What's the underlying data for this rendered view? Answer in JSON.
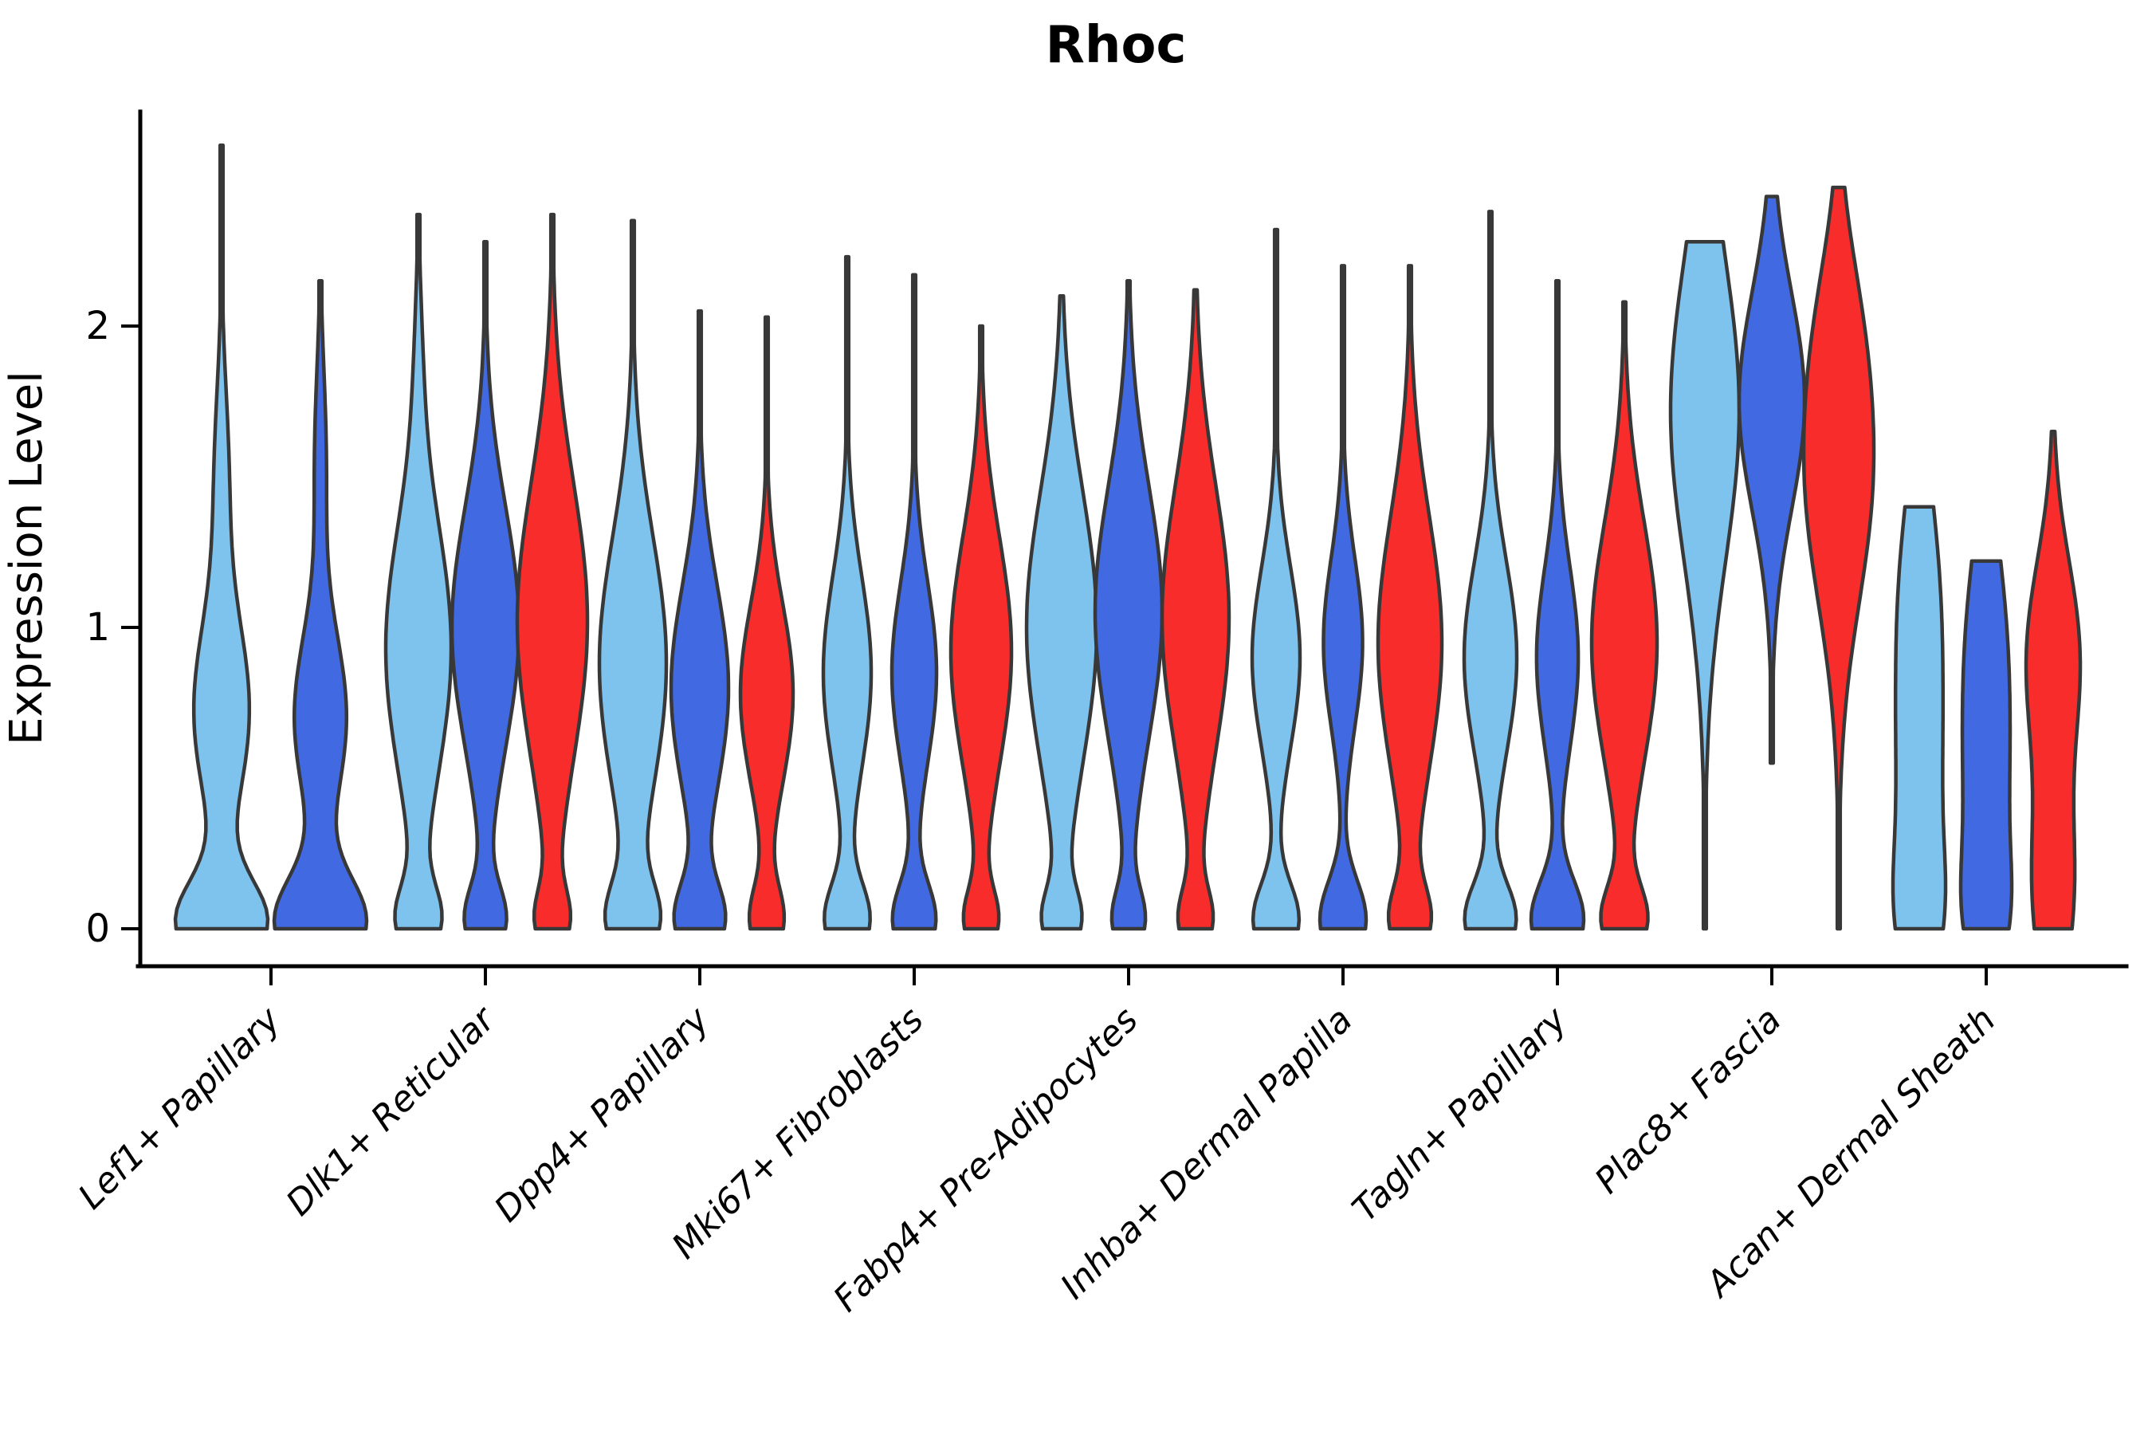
{
  "title": "Rhoc",
  "axes": {
    "ylabel": "Expression Level",
    "xlabel": "",
    "ytick_labels": [
      "0",
      "1",
      "2"
    ]
  },
  "style": {
    "outline_color": "#383838",
    "background_color": "#ffffff",
    "outline_width": 4.5
  },
  "conditions": [
    {
      "name": "skyblue",
      "color": "#7EC3EE"
    },
    {
      "name": "royalblue",
      "color": "#4169E1"
    },
    {
      "name": "red",
      "color": "#F92C2C"
    }
  ],
  "chart_data": {
    "type": "violin",
    "title": "Rhoc",
    "xlabel": "",
    "ylabel": "Expression Level",
    "ylim": [
      0,
      2.74
    ],
    "yticks": [
      0,
      1,
      2
    ],
    "grid": false,
    "legend": "none",
    "categories": [
      "Lef1+ Papillary",
      "Dlk1+ Reticular",
      "Dpp4+ Papillary",
      "Mki67+ Fibroblasts",
      "Fabp4+ Pre-Adipocytes",
      "Inhba+ Dermal Papilla",
      "Tagln+ Papillary",
      "Plac8+ Fascia",
      "Acan+ Dermal Sheath"
    ],
    "groups": [
      {
        "label": "Lef1+ Papillary",
        "violins": [
          {
            "condition": "skyblue",
            "min": 0,
            "max": 2.6,
            "halfwidth": 58,
            "kde": [
              [
                0.02,
                0.14,
                1.0
              ],
              [
                0.72,
                0.3,
                0.62
              ],
              [
                1.5,
                0.3,
                0.16
              ]
            ]
          },
          {
            "condition": "royalblue",
            "min": 0,
            "max": 2.15,
            "halfwidth": 58,
            "kde": [
              [
                0.02,
                0.15,
                1.0
              ],
              [
                0.7,
                0.28,
                0.58
              ],
              [
                1.55,
                0.3,
                0.13
              ]
            ]
          }
        ]
      },
      {
        "label": "Dlk1+ Reticular",
        "violins": [
          {
            "condition": "skyblue",
            "min": 0,
            "max": 2.37,
            "halfwidth": 41,
            "kde": [
              [
                0.03,
                0.11,
                0.62
              ],
              [
                0.93,
                0.42,
                1.0
              ],
              [
                1.9,
                0.25,
                0.08
              ]
            ]
          },
          {
            "condition": "royalblue",
            "min": 0,
            "max": 2.28,
            "halfwidth": 42,
            "kde": [
              [
                0.03,
                0.11,
                0.58
              ],
              [
                1.0,
                0.4,
                1.0
              ]
            ]
          },
          {
            "condition": "red",
            "min": 0,
            "max": 2.37,
            "halfwidth": 44,
            "kde": [
              [
                0.03,
                0.1,
                0.42
              ],
              [
                1.02,
                0.46,
                1.0
              ]
            ]
          }
        ]
      },
      {
        "label": "Dpp4+ Papillary",
        "violins": [
          {
            "condition": "skyblue",
            "min": 0,
            "max": 2.35,
            "halfwidth": 42,
            "kde": [
              [
                0.03,
                0.12,
                0.7
              ],
              [
                0.88,
                0.42,
                1.0
              ]
            ]
          },
          {
            "condition": "royalblue",
            "min": 0,
            "max": 2.05,
            "halfwidth": 36,
            "kde": [
              [
                0.03,
                0.12,
                0.82
              ],
              [
                0.8,
                0.34,
                1.0
              ]
            ]
          },
          {
            "condition": "red",
            "min": 0,
            "max": 2.03,
            "halfwidth": 33,
            "kde": [
              [
                0.03,
                0.11,
                0.62
              ],
              [
                0.78,
                0.3,
                1.0
              ]
            ]
          }
        ]
      },
      {
        "label": "Mki67+ Fibroblasts",
        "violins": [
          {
            "condition": "skyblue",
            "min": 0,
            "max": 2.23,
            "halfwidth": 30,
            "kde": [
              [
                0.03,
                0.12,
                0.92
              ],
              [
                0.85,
                0.32,
                1.0
              ]
            ]
          },
          {
            "condition": "royalblue",
            "min": 0,
            "max": 2.17,
            "halfwidth": 28,
            "kde": [
              [
                0.03,
                0.12,
                0.95
              ],
              [
                0.85,
                0.3,
                1.0
              ]
            ]
          },
          {
            "condition": "red",
            "min": 0,
            "max": 2.0,
            "halfwidth": 38,
            "kde": [
              [
                0.03,
                0.1,
                0.52
              ],
              [
                0.92,
                0.38,
                1.0
              ]
            ]
          }
        ]
      },
      {
        "label": "Fabp4+ Pre-Adipocytes",
        "violins": [
          {
            "condition": "skyblue",
            "min": 0,
            "max": 2.1,
            "halfwidth": 44,
            "kde": [
              [
                0.03,
                0.1,
                0.48
              ],
              [
                1.0,
                0.45,
                1.0
              ]
            ]
          },
          {
            "condition": "royalblue",
            "min": 0,
            "max": 2.15,
            "halfwidth": 42,
            "kde": [
              [
                0.03,
                0.1,
                0.45
              ],
              [
                1.05,
                0.42,
                1.0
              ]
            ]
          },
          {
            "condition": "red",
            "min": 0,
            "max": 2.12,
            "halfwidth": 42,
            "kde": [
              [
                0.03,
                0.1,
                0.45
              ],
              [
                1.03,
                0.44,
                1.0
              ]
            ]
          }
        ]
      },
      {
        "label": "Inhba+ Dermal Papilla",
        "violins": [
          {
            "condition": "skyblue",
            "min": 0,
            "max": 2.32,
            "halfwidth": 30,
            "kde": [
              [
                0.03,
                0.12,
                0.9
              ],
              [
                0.9,
                0.3,
                0.95
              ]
            ]
          },
          {
            "condition": "royalblue",
            "min": 0,
            "max": 2.2,
            "halfwidth": 29,
            "kde": [
              [
                0.03,
                0.13,
                1.0
              ],
              [
                0.95,
                0.28,
                0.85
              ]
            ]
          },
          {
            "condition": "red",
            "min": 0,
            "max": 2.2,
            "halfwidth": 40,
            "kde": [
              [
                0.03,
                0.11,
                0.58
              ],
              [
                0.95,
                0.42,
                1.0
              ]
            ]
          }
        ]
      },
      {
        "label": "Tagln+ Papillary",
        "violins": [
          {
            "condition": "skyblue",
            "min": 0,
            "max": 2.38,
            "halfwidth": 33,
            "kde": [
              [
                0.03,
                0.12,
                0.88
              ],
              [
                0.9,
                0.32,
                0.92
              ]
            ]
          },
          {
            "condition": "royalblue",
            "min": 0,
            "max": 2.15,
            "halfwidth": 33,
            "kde": [
              [
                0.03,
                0.13,
                1.0
              ],
              [
                0.9,
                0.3,
                0.8
              ]
            ]
          },
          {
            "condition": "red",
            "min": 0,
            "max": 2.08,
            "halfwidth": 41,
            "kde": [
              [
                0.03,
                0.11,
                0.65
              ],
              [
                0.95,
                0.4,
                1.0
              ]
            ]
          }
        ]
      },
      {
        "label": "Plac8+ Fascia",
        "violins": [
          {
            "condition": "skyblue",
            "min": 0,
            "max": 2.28,
            "halfwidth": 43,
            "flat_top": true,
            "kde": [
              [
                1.72,
                0.5,
                1.0
              ]
            ]
          },
          {
            "condition": "royalblue",
            "min": 0.55,
            "max": 2.43,
            "halfwidth": 41,
            "kde": [
              [
                1.75,
                0.36,
                1.0
              ]
            ]
          },
          {
            "condition": "red",
            "min": 0,
            "max": 2.46,
            "halfwidth": 44,
            "kde": [
              [
                1.52,
                0.44,
                1.0
              ],
              [
                2.05,
                0.28,
                0.22
              ]
            ]
          }
        ]
      },
      {
        "label": "Acan+ Dermal Sheath",
        "violins": [
          {
            "condition": "skyblue",
            "min": 0,
            "max": 1.4,
            "halfwidth": 33,
            "flat_top": true,
            "kde": [
              [
                0.6,
                0.62,
                1.0
              ],
              [
                0.05,
                0.2,
                0.45
              ],
              [
                1.2,
                0.3,
                0.25
              ]
            ]
          },
          {
            "condition": "royalblue",
            "min": 0,
            "max": 1.22,
            "halfwidth": 32,
            "flat_top": true,
            "kde": [
              [
                0.55,
                0.55,
                1.0
              ],
              [
                0.05,
                0.18,
                0.42
              ],
              [
                1.05,
                0.28,
                0.2
              ]
            ]
          },
          {
            "condition": "red",
            "min": 0,
            "max": 1.65,
            "halfwidth": 34,
            "kde": [
              [
                0.9,
                0.32,
                0.9
              ],
              [
                0.12,
                0.3,
                0.68
              ]
            ]
          }
        ]
      }
    ]
  }
}
